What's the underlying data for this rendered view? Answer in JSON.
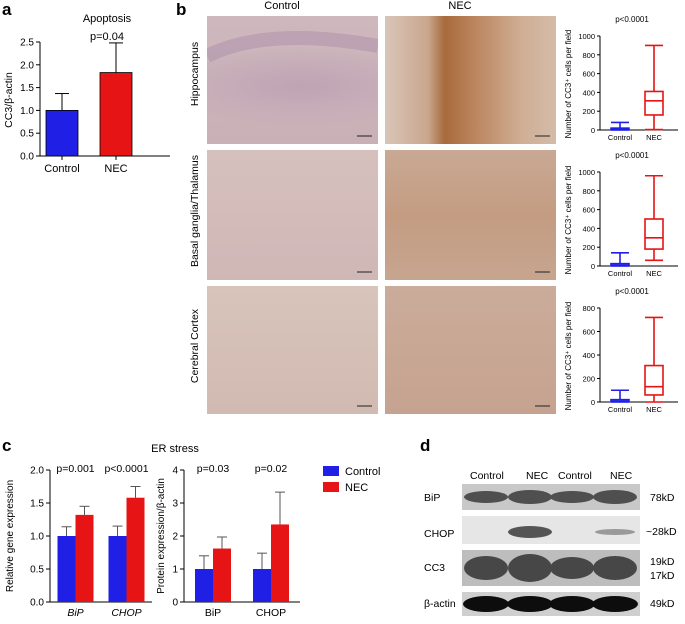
{
  "panels": {
    "a": {
      "letter": "a",
      "title": "Apoptosis",
      "pvalue": "p=0.04",
      "ylabel": "CC3/β-actin"
    },
    "b": {
      "letter": "b",
      "columns": [
        "Control",
        "NEC"
      ],
      "rows": [
        "Hippocampus",
        "Basal ganglia/Thalamus",
        "Cerebral Cortex"
      ],
      "box_ylabel": "Number of CC3⁺ cells per field",
      "box_pvalues": [
        "p<0.0001",
        "p<0.0001",
        "p<0.0001"
      ]
    },
    "c": {
      "letter": "c",
      "title": "ER stress",
      "left_ylabel": "Relative gene expression",
      "right_ylabel": "Protein expression/β-actin",
      "left_pvalues": [
        "p=0.001",
        "p<0.0001"
      ],
      "right_pvalues": [
        "p=0.03",
        "p=0.02"
      ],
      "legend": [
        "Control",
        "NEC"
      ]
    },
    "d": {
      "letter": "d",
      "lane_labels": [
        "Control",
        "NEC",
        "Control",
        "NEC"
      ],
      "bands": [
        "BiP",
        "CHOP",
        "CC3",
        "β-actin"
      ],
      "sizes": [
        "78kD",
        "~28kD",
        "19kD",
        "17kD",
        "49kD"
      ]
    }
  },
  "colors": {
    "control": "#1f1fe6",
    "nec": "#e61414",
    "box_control": "#1f1fe6",
    "box_nec": "#e61414"
  },
  "chart_data": [
    {
      "type": "bar",
      "panel": "a",
      "title": "Apoptosis",
      "ylabel": "CC3/β-actin",
      "categories": [
        "Control",
        "NEC"
      ],
      "values": [
        1.0,
        1.83
      ],
      "errors": [
        0.37,
        0.65
      ],
      "ylim": [
        0,
        2.5
      ],
      "yticks": [
        "0.0",
        "0.5",
        "1.0",
        "1.5",
        "2.0",
        "2.5"
      ]
    },
    {
      "type": "box",
      "panel": "b-hippocampus",
      "categories": [
        "Control",
        "NEC"
      ],
      "ylim": [
        0,
        1000
      ],
      "yticks": [
        "0",
        "200",
        "400",
        "600",
        "800",
        "1000"
      ],
      "boxes": [
        {
          "min": 0,
          "q1": 2,
          "median": 8,
          "q3": 20,
          "max": 80
        },
        {
          "min": 5,
          "q1": 160,
          "median": 310,
          "q3": 410,
          "max": 900
        }
      ]
    },
    {
      "type": "box",
      "panel": "b-basal-ganglia",
      "categories": [
        "Control",
        "NEC"
      ],
      "ylim": [
        0,
        1000
      ],
      "yticks": [
        "0",
        "200",
        "400",
        "600",
        "800",
        "1000"
      ],
      "boxes": [
        {
          "min": 0,
          "q1": 2,
          "median": 8,
          "q3": 25,
          "max": 140
        },
        {
          "min": 60,
          "q1": 180,
          "median": 300,
          "q3": 500,
          "max": 960
        }
      ]
    },
    {
      "type": "box",
      "panel": "b-cortex",
      "categories": [
        "Control",
        "NEC"
      ],
      "ylim": [
        0,
        800
      ],
      "yticks": [
        "0",
        "200",
        "400",
        "600",
        "800"
      ],
      "boxes": [
        {
          "min": 0,
          "q1": 2,
          "median": 6,
          "q3": 20,
          "max": 100
        },
        {
          "min": 0,
          "q1": 60,
          "median": 130,
          "q3": 310,
          "max": 720
        }
      ]
    },
    {
      "type": "bar",
      "panel": "c-gene",
      "ylabel": "Relative gene expression",
      "categories": [
        "BiP",
        "CHOP"
      ],
      "series": [
        {
          "name": "Control",
          "values": [
            1.0,
            1.0
          ],
          "errors": [
            0.14,
            0.15
          ]
        },
        {
          "name": "NEC",
          "values": [
            1.32,
            1.58
          ],
          "errors": [
            0.13,
            0.17
          ]
        }
      ],
      "ylim": [
        0,
        2.0
      ],
      "yticks": [
        "0.0",
        "0.5",
        "1.0",
        "1.5",
        "2.0"
      ]
    },
    {
      "type": "bar",
      "panel": "c-protein",
      "ylabel": "Protein expression/β-actin",
      "categories": [
        "BiP",
        "CHOP"
      ],
      "series": [
        {
          "name": "Control",
          "values": [
            1.0,
            1.0
          ],
          "errors": [
            0.4,
            0.48
          ]
        },
        {
          "name": "NEC",
          "values": [
            1.62,
            2.35
          ],
          "errors": [
            0.35,
            0.98
          ]
        }
      ],
      "ylim": [
        0,
        4
      ],
      "yticks": [
        "0",
        "1",
        "2",
        "3",
        "4"
      ]
    }
  ]
}
